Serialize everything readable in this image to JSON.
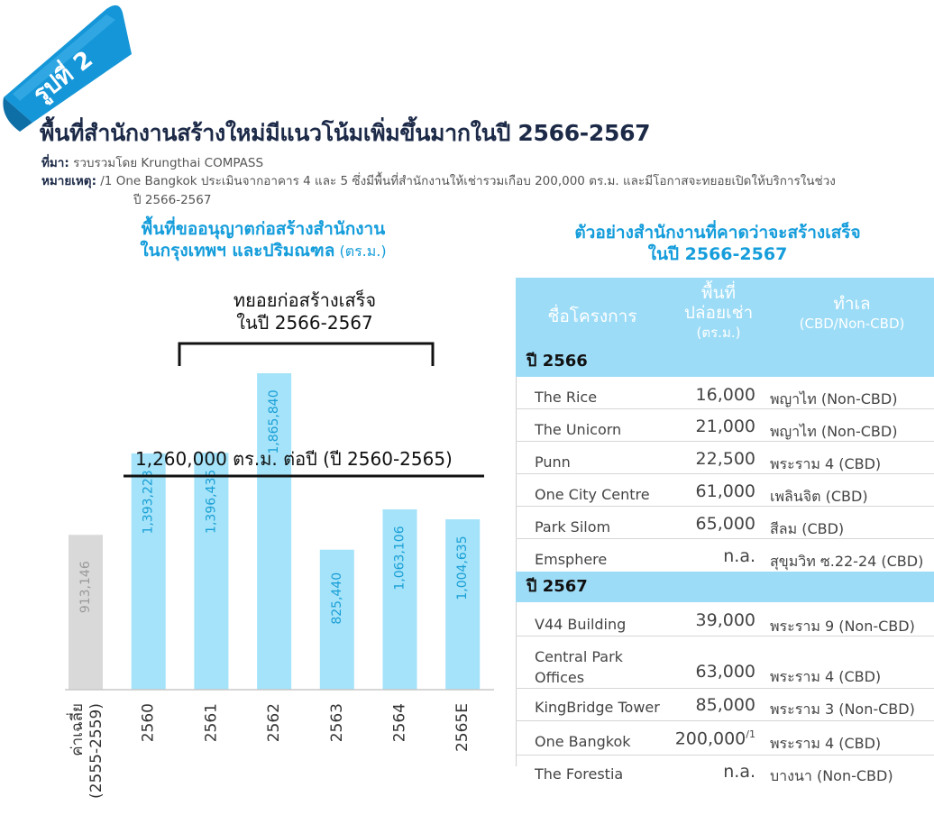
{
  "badge": "รูปที่ 2",
  "title": "พื้นที่สำนักงานสร้างใหม่มีแนวโน้มเพิ่มขึ้นมากในปี 2566-2567",
  "source": {
    "label": "ที่มา:",
    "text": " รวบรวมโดย Krungthai COMPASS"
  },
  "note": {
    "label": "หมายเหตุ:",
    "line1": " /1 One Bangkok ประเมินจากอาคาร 4 และ 5 ซึ่งมีพื้นที่สำนักงานให้เช่ารวมเกือบ 200,000 ตร.ม. และมีโอกาสจะทยอยเปิดให้บริการในช่วง",
    "line2": "ปี 2566-2567"
  },
  "chart_section": {
    "title_line1": "พื้นที่ขออนุญาตก่อสร้างสำนักงาน",
    "title_line2": "ในกรุงเทพฯ และปริมณฑล",
    "unit": " (ตร.ม.)"
  },
  "chart_data": {
    "type": "bar",
    "categories": [
      "ค่าเฉลี่ย\n(2555-2559)",
      "2560",
      "2561",
      "2562",
      "2563",
      "2564",
      "2565E"
    ],
    "values": [
      913146,
      1393223,
      1396435,
      1865840,
      825440,
      1063106,
      1004635
    ],
    "value_labels": [
      "913,146",
      "1,393,223",
      "1,396,435",
      "1,865,840",
      "825,440",
      "1,063,106",
      "1,004,635"
    ],
    "colors": {
      "average": "#d9d9d9",
      "bars": "#a4e3f9",
      "avg_label": "#9a9a9a",
      "bar_label": "#1a9fd6"
    },
    "reference_line": {
      "value": 1260000,
      "label": "1,260,000 ตร.ม. ต่อปี (ปี 2560-2565)"
    },
    "bracket_label": [
      "ทยอยก่อสร้างเสร็จ",
      "ในปี 2566-2567"
    ]
  },
  "table": {
    "title_line1": "ตัวอย่างสำนักงานที่คาดว่าจะสร้างเสร็จ",
    "title_line2": "ในปี 2566-2567",
    "headers": {
      "project": "ชื่อโครงการ",
      "area1": "พื้นที่",
      "area2": "ปล่อยเช่า",
      "area_unit": "(ตร.ม.)",
      "loc": "ทำเล",
      "loc_sub": "(CBD/Non-CBD)"
    },
    "groups": [
      {
        "year": "ปี 2566",
        "rows": [
          {
            "name": "The Rice",
            "area": "16,000",
            "loc": "พญาไท (Non-CBD)"
          },
          {
            "name": "The Unicorn",
            "area": "21,000",
            "loc": "พญาไท (Non-CBD)"
          },
          {
            "name": "Punn",
            "area": "22,500",
            "loc": "พระราม 4 (CBD)"
          },
          {
            "name": "One City Centre",
            "area": "61,000",
            "loc": "เพลินจิต (CBD)"
          },
          {
            "name": "Park Silom",
            "area": "65,000",
            "loc": "สีลม (CBD)"
          },
          {
            "name": "Emsphere",
            "area": "n.a.",
            "loc": "สุขุมวิท ซ.22-24 (CBD)"
          }
        ]
      },
      {
        "year": "ปี 2567",
        "rows": [
          {
            "name": "V44 Building",
            "area": "39,000",
            "loc": "พระราม 9 (Non-CBD)"
          },
          {
            "name": "Central Park",
            "name2": "Offices",
            "area": "63,000",
            "loc": "พระราม 4 (CBD)"
          },
          {
            "name": "KingBridge Tower",
            "area": "85,000",
            "loc": "พระราม 3 (Non-CBD)"
          },
          {
            "name": "One Bangkok",
            "area": "200,000",
            "sup": "/1",
            "loc": "พระราม 4 (CBD)"
          },
          {
            "name": "The Forestia",
            "area": "n.a.",
            "loc": "บางนา (Non-CBD)"
          }
        ]
      }
    ]
  }
}
